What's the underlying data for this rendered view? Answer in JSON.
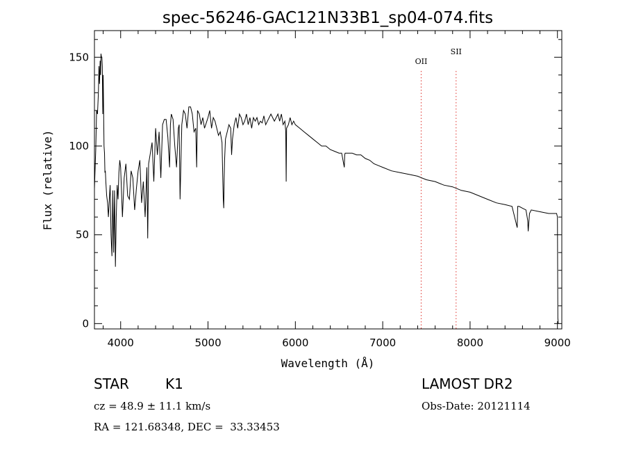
{
  "chart_data": {
    "type": "line",
    "title": "spec-56246-GAC121N33B1_sp04-074.fits",
    "xlabel": "Wavelength (Å)",
    "ylabel": "Flux (relative)",
    "xlim": [
      3700,
      9050
    ],
    "ylim": [
      -3,
      165
    ],
    "xticks": [
      4000,
      5000,
      6000,
      7000,
      8000,
      9000
    ],
    "yticks": [
      0,
      50,
      100,
      150
    ],
    "grid": false,
    "series": [
      {
        "x": [
          3700,
          3715,
          3725,
          3735,
          3745,
          3752,
          3758,
          3765,
          3770,
          3775,
          3780,
          3785,
          3790,
          3795,
          3800,
          3805,
          3810,
          3815,
          3820,
          3825,
          3830,
          3840,
          3850,
          3860,
          3870,
          3880,
          3890,
          3900,
          3910,
          3920,
          3930,
          3940,
          3950,
          3960,
          3970,
          3980,
          3990,
          4000,
          4020,
          4040,
          4060,
          4080,
          4100,
          4120,
          4140,
          4160,
          4180,
          4200,
          4220,
          4240,
          4260,
          4280,
          4300,
          4310,
          4320,
          4340,
          4360,
          4380,
          4400,
          4420,
          4440,
          4460,
          4480,
          4500,
          4520,
          4540,
          4560,
          4570,
          4580,
          4600,
          4620,
          4640,
          4660,
          4670,
          4680,
          4700,
          4720,
          4740,
          4760,
          4780,
          4800,
          4820,
          4840,
          4860,
          4870,
          4880,
          4900,
          4920,
          4940,
          4960,
          4980,
          5000,
          5020,
          5040,
          5060,
          5080,
          5100,
          5120,
          5140,
          5160,
          5170,
          5175,
          5180,
          5185,
          5190,
          5200,
          5220,
          5240,
          5260,
          5270,
          5280,
          5300,
          5320,
          5340,
          5360,
          5380,
          5400,
          5420,
          5440,
          5460,
          5480,
          5500,
          5520,
          5540,
          5560,
          5580,
          5600,
          5620,
          5640,
          5660,
          5680,
          5700,
          5720,
          5740,
          5760,
          5780,
          5800,
          5820,
          5840,
          5860,
          5880,
          5890,
          5895,
          5900,
          5920,
          5940,
          5960,
          5980,
          6000,
          6050,
          6100,
          6150,
          6200,
          6250,
          6300,
          6350,
          6400,
          6450,
          6500,
          6530,
          6560,
          6565,
          6570,
          6600,
          6650,
          6700,
          6750,
          6800,
          6850,
          6900,
          6950,
          7000,
          7100,
          7200,
          7300,
          7400,
          7500,
          7600,
          7700,
          7800,
          7900,
          8000,
          8100,
          8200,
          8300,
          8400,
          8480,
          8500,
          8540,
          8545,
          8560,
          8600,
          8640,
          8660,
          8665,
          8680,
          8700,
          8800,
          8900,
          8960,
          8990,
          9000,
          9005,
          9010
        ],
        "y": [
          76,
          98,
          120,
          118,
          130,
          145,
          135,
          148,
          140,
          152,
          150,
          150,
          145,
          118,
          140,
          120,
          100,
          96,
          85,
          86,
          80,
          72,
          68,
          60,
          70,
          78,
          50,
          38,
          75,
          40,
          75,
          32,
          60,
          78,
          70,
          85,
          92,
          88,
          60,
          82,
          90,
          72,
          70,
          86,
          82,
          64,
          76,
          86,
          92,
          68,
          80,
          60,
          88,
          48,
          90,
          96,
          102,
          80,
          110,
          95,
          108,
          82,
          112,
          115,
          115,
          105,
          88,
          112,
          118,
          115,
          100,
          88,
          110,
          112,
          70,
          112,
          120,
          118,
          110,
          122,
          122,
          118,
          108,
          110,
          88,
          120,
          118,
          112,
          116,
          110,
          113,
          116,
          120,
          110,
          116,
          114,
          110,
          106,
          108,
          102,
          80,
          70,
          65,
          82,
          92,
          104,
          108,
          112,
          110,
          95,
          104,
          112,
          116,
          110,
          118,
          116,
          112,
          114,
          118,
          112,
          116,
          110,
          116,
          114,
          116,
          112,
          114,
          113,
          117,
          112,
          114,
          116,
          118,
          116,
          114,
          116,
          118,
          114,
          118,
          112,
          114,
          108,
          80,
          110,
          112,
          116,
          112,
          114,
          112,
          110,
          108,
          106,
          104,
          102,
          100,
          100,
          98,
          97,
          96,
          96,
          88,
          95,
          96,
          96,
          96,
          95,
          95,
          93,
          92,
          90,
          89,
          88,
          86,
          85,
          84,
          83,
          81,
          80,
          78,
          77,
          75,
          74,
          72,
          70,
          68,
          67,
          66,
          62,
          54,
          66,
          66,
          65,
          64,
          58,
          52,
          62,
          64,
          63,
          62,
          62,
          62,
          60,
          3,
          0
        ]
      }
    ],
    "lines": [
      {
        "x": 7440,
        "label": "OII"
      },
      {
        "x": 7840,
        "label": "SII"
      }
    ]
  },
  "info": {
    "object_class": "STAR",
    "subclass": "K1",
    "survey": "LAMOST DR2",
    "cz": "cz = 48.9 ± 11.1 km/s",
    "obs_date": "Obs-Date: 20121114",
    "coords": "RA = 121.68348, DEC =  33.33453"
  },
  "colors": {
    "spectrum": "#000000",
    "line_markers": "#e0312b",
    "axes": "#000000"
  }
}
